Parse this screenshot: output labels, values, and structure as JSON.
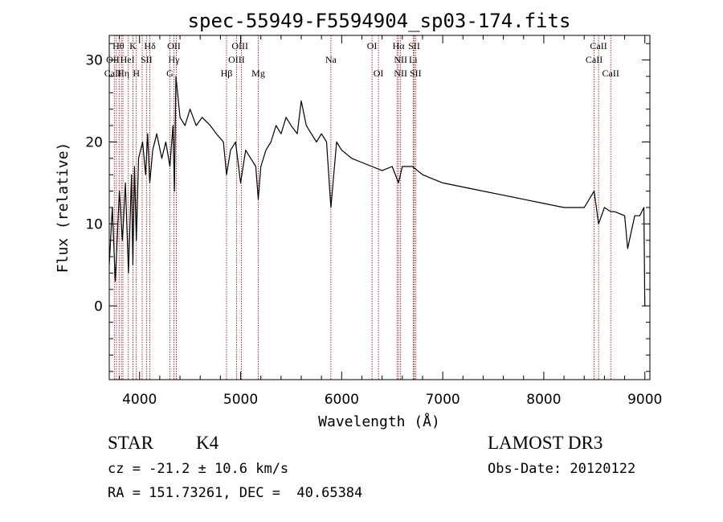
{
  "chart_data": {
    "type": "line",
    "title": "spec-55949-F5594904_sp03-174.fits",
    "xlabel": "Wavelength (Å)",
    "ylabel": "Flux (relative)",
    "xlim": [
      3700,
      9050
    ],
    "ylim": [
      -9,
      33
    ],
    "x_ticks": [
      4000,
      5000,
      6000,
      7000,
      8000,
      9000
    ],
    "y_ticks": [
      0,
      10,
      20,
      30
    ],
    "grid": false,
    "series": [
      {
        "name": "spectrum",
        "color": "#000000",
        "x": [
          3700,
          3730,
          3760,
          3800,
          3830,
          3860,
          3890,
          3920,
          3934,
          3950,
          3968,
          3990,
          4030,
          4060,
          4080,
          4101,
          4130,
          4170,
          4220,
          4260,
          4300,
          4330,
          4345,
          4360,
          4400,
          4450,
          4500,
          4560,
          4620,
          4700,
          4760,
          4830,
          4861,
          4900,
          4950,
          5000,
          5050,
          5100,
          5150,
          5175,
          5200,
          5250,
          5300,
          5350,
          5400,
          5450,
          5500,
          5560,
          5600,
          5650,
          5700,
          5750,
          5800,
          5850,
          5893,
          5950,
          6000,
          6100,
          6200,
          6300,
          6400,
          6500,
          6563,
          6600,
          6700,
          6800,
          6900,
          7000,
          7200,
          7400,
          7600,
          7800,
          8000,
          8200,
          8400,
          8498,
          8542,
          8600,
          8662,
          8700,
          8800,
          8830,
          8900,
          8950,
          8990,
          9000,
          9010
        ],
        "values": [
          5,
          12,
          3,
          14,
          8,
          15,
          4,
          16,
          5,
          17,
          8,
          18,
          20,
          16,
          21,
          15,
          19,
          21,
          18,
          20,
          17,
          22,
          14,
          28,
          23,
          22,
          24,
          22,
          23,
          22,
          21,
          20,
          16,
          19,
          20,
          15,
          19,
          18,
          17,
          13,
          17,
          19,
          20,
          22,
          21,
          23,
          22,
          21,
          25,
          22,
          21,
          20,
          21,
          20,
          12,
          20,
          19,
          18,
          17.5,
          17,
          16.5,
          17,
          15,
          17,
          17,
          16,
          15.5,
          15,
          14.5,
          14,
          13.5,
          13,
          12.5,
          12,
          12,
          14,
          10,
          12,
          11.5,
          11.5,
          11,
          7,
          11,
          11,
          12,
          0,
          0
        ]
      }
    ],
    "line_markers": {
      "color": "#8b0000",
      "wavelengths": [
        3750,
        3771,
        3798,
        3820,
        3835,
        3889,
        3934,
        3968,
        4026,
        4068,
        4102,
        4300,
        4340,
        4363,
        4861,
        4959,
        5007,
        5175,
        5893,
        6300,
        6364,
        6548,
        6563,
        6583,
        6707,
        6717,
        6731,
        8498,
        8542,
        8662
      ],
      "labels": [
        {
          "text": "Hθ",
          "row": 1,
          "wavelength": 3790
        },
        {
          "text": "K",
          "row": 1,
          "wavelength": 3934
        },
        {
          "text": "Hδ",
          "row": 1,
          "wavelength": 4102
        },
        {
          "text": "OII",
          "row": 1,
          "wavelength": 4340
        },
        {
          "text": "OIII",
          "row": 1,
          "wavelength": 4993
        },
        {
          "text": "OI",
          "row": 1,
          "wavelength": 6300
        },
        {
          "text": "Hα",
          "row": 1,
          "wavelength": 6563
        },
        {
          "text": "SII",
          "row": 1,
          "wavelength": 6717
        },
        {
          "text": "CaII",
          "row": 1,
          "wavelength": 8542
        },
        {
          "text": "OII",
          "row": 2,
          "wavelength": 3735
        },
        {
          "text": "HeI",
          "row": 2,
          "wavelength": 3880
        },
        {
          "text": "SII",
          "row": 2,
          "wavelength": 4068
        },
        {
          "text": "Hγ",
          "row": 2,
          "wavelength": 4340
        },
        {
          "text": "OIII",
          "row": 2,
          "wavelength": 4959
        },
        {
          "text": "Na",
          "row": 2,
          "wavelength": 5893
        },
        {
          "text": "NII",
          "row": 2,
          "wavelength": 6583
        },
        {
          "text": "Li",
          "row": 2,
          "wavelength": 6707
        },
        {
          "text": "CaII",
          "row": 2,
          "wavelength": 8498
        },
        {
          "text": "CaII",
          "row": 3,
          "wavelength": 3735
        },
        {
          "text": "Hη",
          "row": 3,
          "wavelength": 3840
        },
        {
          "text": "H",
          "row": 3,
          "wavelength": 3968
        },
        {
          "text": "G",
          "row": 3,
          "wavelength": 4300
        },
        {
          "text": "Hβ",
          "row": 3,
          "wavelength": 4861
        },
        {
          "text": "Mg",
          "row": 3,
          "wavelength": 5175
        },
        {
          "text": "OI",
          "row": 3,
          "wavelength": 6364
        },
        {
          "text": "NII",
          "row": 3,
          "wavelength": 6583
        },
        {
          "text": "SII",
          "row": 3,
          "wavelength": 6731
        },
        {
          "text": "CaII",
          "row": 3,
          "wavelength": 8662
        }
      ]
    }
  },
  "footer": {
    "object_class": "STAR",
    "subclass": "K4",
    "survey": "LAMOST DR3",
    "redshift": "cz = -21.2 ± 10.6 km/s",
    "obs_date": "Obs-Date: 20120122",
    "coords": "RA = 151.73261, DEC =  40.65384"
  }
}
